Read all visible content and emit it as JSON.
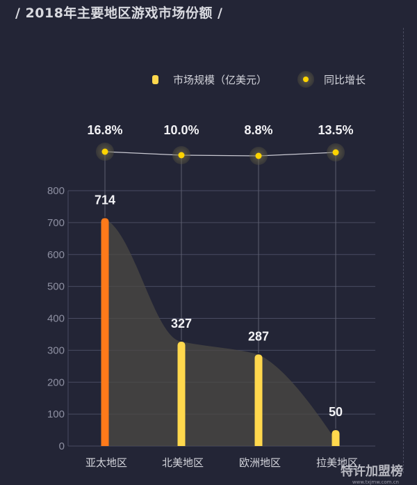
{
  "header": {
    "title": "/ 2018年主要地区游戏市场份额 /"
  },
  "watermark": {
    "brand": "特许加盟榜",
    "url": "www.txjmw.com.cn"
  },
  "chart_data": {
    "type": "bar",
    "categories": [
      "亚太地区",
      "北美地区",
      "欧洲地区",
      "拉美地区"
    ],
    "series": [
      {
        "name": "市场规模（亿美元）",
        "type": "bar",
        "values": [
          714,
          327,
          287,
          50
        ],
        "colors": [
          "#ff7a1a",
          "#ffd84d",
          "#ffd84d",
          "#ffd84d"
        ]
      },
      {
        "name": "同比增长",
        "type": "line",
        "values": [
          16.8,
          10.0,
          8.8,
          13.5
        ],
        "labels": [
          "16.8%",
          "10.0%",
          "8.8%",
          "13.5%"
        ],
        "color": "#ffd400"
      }
    ],
    "ylim": [
      0,
      800
    ],
    "yticks": [
      0,
      100,
      200,
      300,
      400,
      500,
      600,
      700,
      800
    ],
    "grid": true,
    "legend_position": "top-right"
  }
}
